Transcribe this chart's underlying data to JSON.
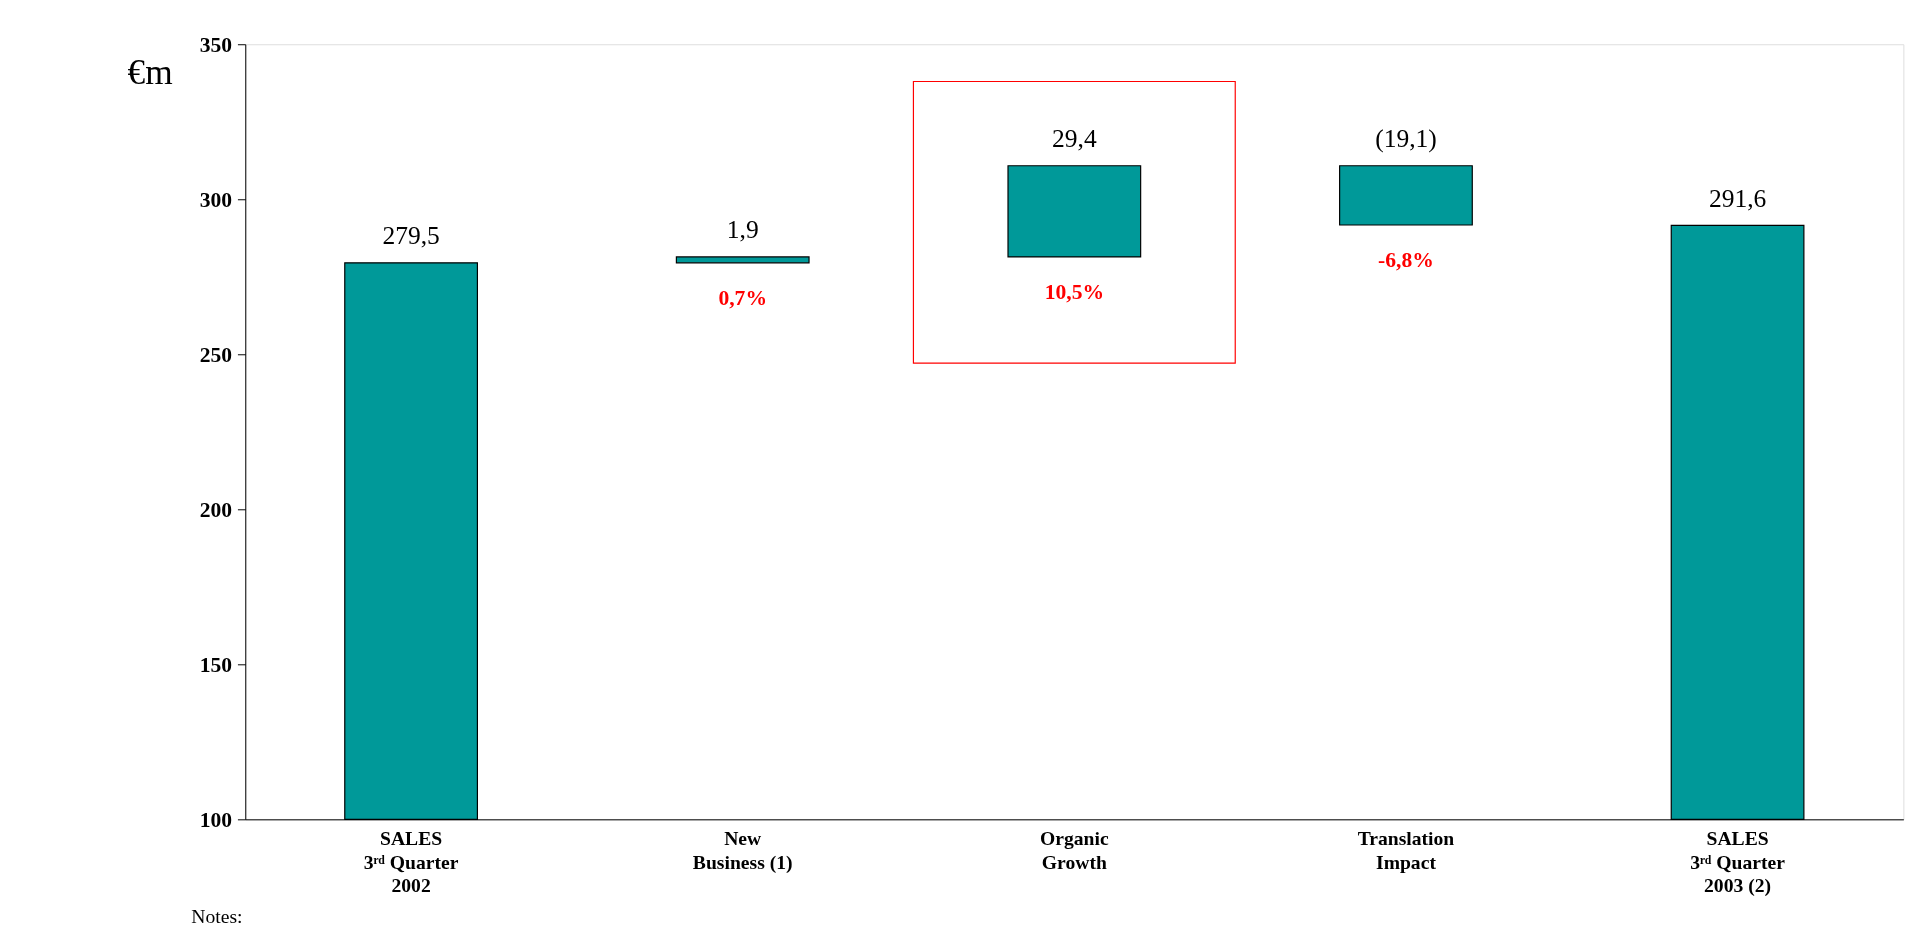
{
  "chart_data": {
    "type": "bar",
    "ylabel": "€m",
    "categories": [
      "SALES\n3ʳᵈ Quarter\n2002",
      "New\nBusiness (1)",
      "Organic\nGrowth",
      "Translation\nImpact",
      "SALES\n3ʳᵈ Quarter\n2003 (2)"
    ],
    "series": [
      {
        "color": "#009999",
        "values": [
          279.5,
          1.9,
          29.4,
          -19.1,
          291.6
        ],
        "base": [
          null,
          279.5,
          281.4,
          310.8,
          null
        ],
        "value_labels": [
          "279,5",
          "1,9",
          "29,4",
          "(19,1)",
          "291,6"
        ]
      }
    ],
    "ylim": [
      100,
      350
    ],
    "yticks": [
      100,
      150,
      200,
      250,
      300,
      350
    ],
    "annotations": [
      "0,7%",
      "10,5%",
      "-6,8%",
      "Notes:"
    ]
  }
}
